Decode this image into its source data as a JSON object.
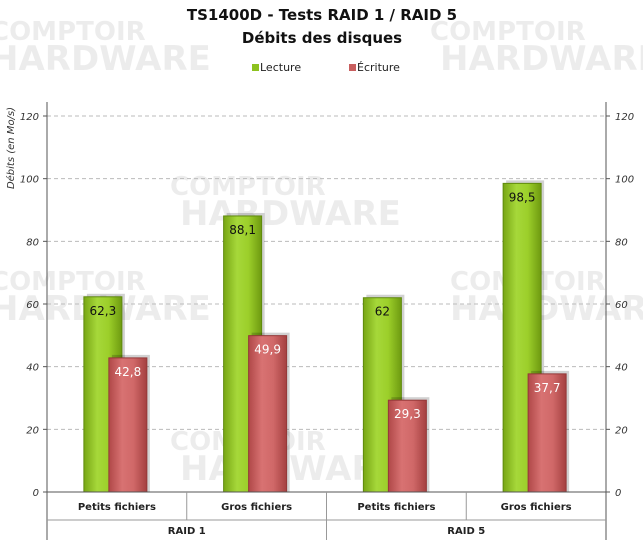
{
  "chart_data": {
    "type": "bar",
    "title": "TS1400D - Tests RAID 1 / RAID 5",
    "subtitle": "Débits des disques",
    "ylabel": "Débits (en Mo/s)",
    "ylim": [
      0,
      120
    ],
    "yticks": [
      0,
      20,
      40,
      60,
      80,
      100,
      120
    ],
    "grid": true,
    "legend_position": "top",
    "categories": [
      "Petits fichiers",
      "Gros fichiers",
      "Petits fichiers",
      "Gros fichiers"
    ],
    "groups": [
      {
        "label": "RAID 1",
        "categories": [
          0,
          1
        ]
      },
      {
        "label": "RAID 5",
        "categories": [
          2,
          3
        ]
      }
    ],
    "series": [
      {
        "name": "Lecture",
        "values": [
          62.3,
          88.1,
          62,
          98.5
        ],
        "labels": [
          "62,3",
          "88,1",
          "62",
          "98,5"
        ],
        "color": "#8dc21f"
      },
      {
        "name": "Écriture",
        "values": [
          42.8,
          49.9,
          29.3,
          37.7
        ],
        "labels": [
          "42,8",
          "49,9",
          "29,3",
          "37,7"
        ],
        "color": "#c85e5e"
      }
    ]
  }
}
